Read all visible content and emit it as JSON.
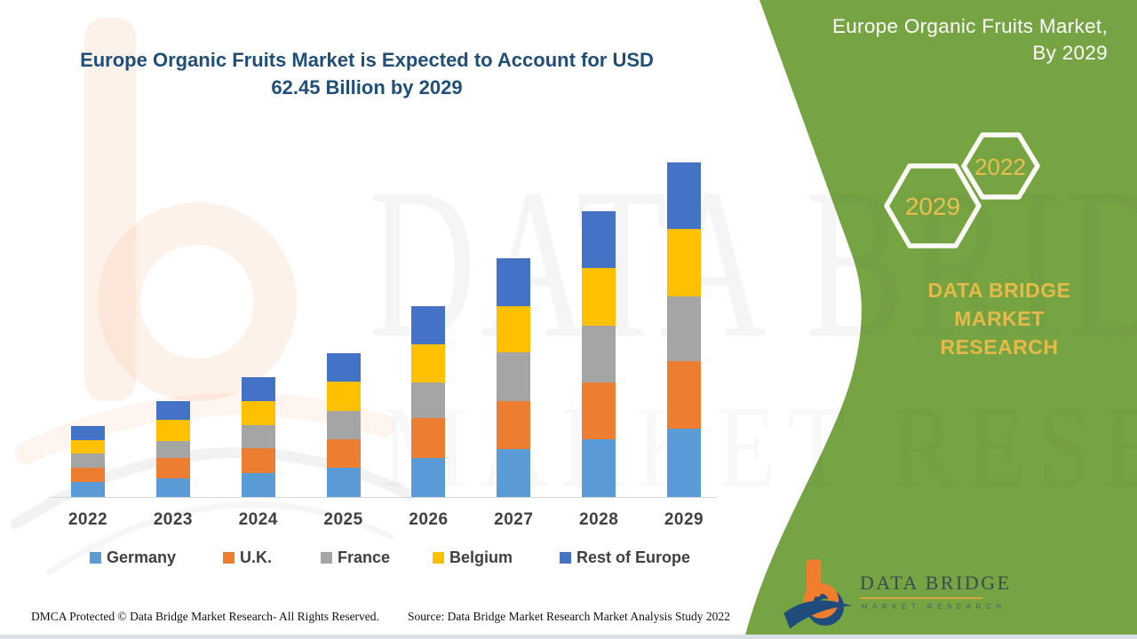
{
  "main_title": {
    "line1": "Europe Organic Fruits Market is Expected to Account for USD",
    "line2": "62.45 Billion by 2029"
  },
  "side_panel": {
    "title_line1": "Europe Organic Fruits Market,",
    "title_line2": "By 2029",
    "hexagon_front_label": "2029",
    "hexagon_back_label": "2022",
    "brand_line1": "DATA BRIDGE MARKET",
    "brand_line2": "RESEARCH",
    "panel_color": "#77A442",
    "gold_color": "#E5BA49"
  },
  "footer": {
    "dmca": "DMCA Protected © Data Bridge Market Research- All Rights Reserved.",
    "source": "Source: Data Bridge Market Research Market Analysis Study 2022",
    "logo_name": "DATA BRIDGE",
    "logo_subtitle": "MARKET RESEARCH"
  },
  "watermark": {
    "line1": "DATA BRIDGE",
    "line2": "MARKET RESEARCH"
  },
  "chart_data": {
    "type": "bar",
    "stacked": true,
    "title": "Europe Organic Fruits Market is Expected to Account for USD 62.45 Billion by 2029",
    "unit": "USD Billion",
    "categories": [
      "2022",
      "2023",
      "2024",
      "2025",
      "2026",
      "2027",
      "2028",
      "2029"
    ],
    "series": [
      {
        "name": "Germany",
        "color": "#5B9BD5",
        "values": [
          2.75,
          3.5,
          4.5,
          5.5,
          7.3,
          9.0,
          10.8,
          12.8
        ]
      },
      {
        "name": "U.K.",
        "color": "#ED7D31",
        "values": [
          2.75,
          3.85,
          4.6,
          5.25,
          7.45,
          8.85,
          10.65,
          12.6
        ]
      },
      {
        "name": "France",
        "color": "#A5A5A5",
        "values": [
          2.65,
          3.15,
          4.4,
          5.35,
          6.7,
          9.2,
          10.6,
          12.1
        ]
      },
      {
        "name": "Belgium",
        "color": "#FFC000",
        "values": [
          2.5,
          3.85,
          4.4,
          5.4,
          7.0,
          8.65,
          10.8,
          12.55
        ]
      },
      {
        "name": "Rest of Europe",
        "color": "#4472C4",
        "values": [
          2.6,
          3.5,
          4.55,
          5.4,
          7.2,
          8.95,
          10.5,
          12.4
        ]
      }
    ],
    "totals": [
      13.25,
      17.85,
      22.45,
      26.9,
      35.65,
      44.65,
      53.35,
      62.45
    ],
    "highlight_total_2029": 62.45,
    "ylim": [
      0,
      65
    ],
    "grid": false,
    "legend_position": "bottom",
    "xlabel": "",
    "ylabel": ""
  }
}
